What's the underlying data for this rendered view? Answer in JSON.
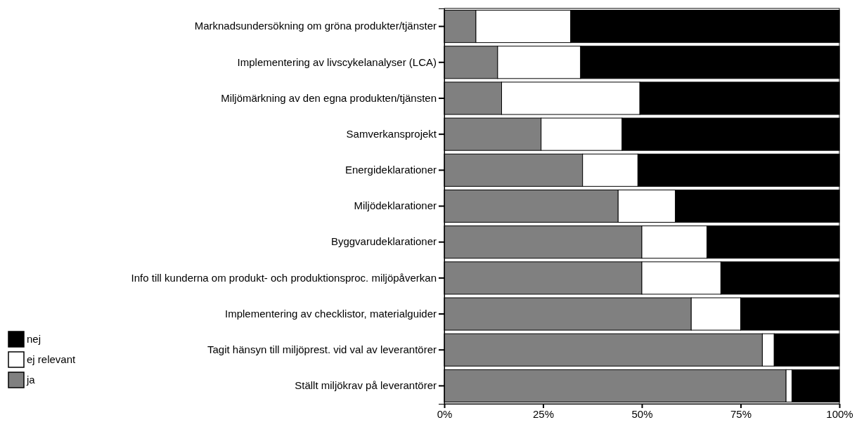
{
  "chart_data": {
    "type": "bar",
    "orientation": "horizontal",
    "stacked": true,
    "categories": [
      "Marknadsundersökning om gröna produkter/tjänster",
      "Implementering av livscykelanalyser (LCA)",
      "Miljömärkning av den egna produkten/tjänsten",
      "Samverkansprojekt",
      "Energideklarationer",
      "Miljödeklarationer",
      "Byggvarudeklarationer",
      "Info till kunderna om produkt- och produktionsproc. miljöpåverkan",
      "Implementering av checklistor, materialguider",
      "Tagit hänsyn till miljöprest. vid val av leverantörer",
      "Ställt miljökrav på leverantörer"
    ],
    "series": [
      {
        "name": "ja",
        "color": "#808080",
        "values": [
          8,
          13.5,
          14.5,
          24.5,
          35,
          44,
          50,
          50,
          62.5,
          80.5,
          86.5
        ]
      },
      {
        "name": "ej relevant",
        "color": "#ffffff",
        "values": [
          24,
          21,
          35,
          20.5,
          14,
          14.5,
          16.5,
          20,
          12.5,
          3,
          1.5
        ]
      },
      {
        "name": "nej",
        "color": "#000000",
        "values": [
          68,
          65.5,
          50.5,
          55,
          51,
          41.5,
          33.5,
          30,
          25,
          16.5,
          12
        ]
      }
    ],
    "xlim": [
      0,
      100
    ],
    "xticks": [
      {
        "value": 0,
        "label": "0%"
      },
      {
        "value": 25,
        "label": "25%"
      },
      {
        "value": 50,
        "label": "50%"
      },
      {
        "value": 75,
        "label": "75%"
      },
      {
        "value": 100,
        "label": "100%"
      }
    ],
    "legend": "bottom left"
  }
}
